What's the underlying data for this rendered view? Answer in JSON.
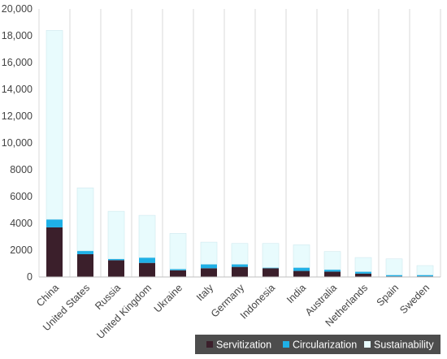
{
  "chart_data": {
    "type": "bar",
    "stacked": true,
    "categories": [
      "China",
      "United States",
      "Russia",
      "United Kingdom",
      "Ukraine",
      "Italy",
      "Germany",
      "Indonesia",
      "India",
      "Australia",
      "Netherlands",
      "Spain",
      "Sweden"
    ],
    "series": [
      {
        "name": "Servitization",
        "color": "#3b1f2b",
        "values": [
          3700,
          1700,
          1250,
          1050,
          500,
          650,
          750,
          650,
          450,
          400,
          250,
          50,
          50
        ]
      },
      {
        "name": "Circularization",
        "color": "#1fb0e6",
        "values": [
          600,
          250,
          100,
          400,
          100,
          300,
          200,
          50,
          250,
          150,
          150,
          100,
          100
        ]
      },
      {
        "name": "Sustainability",
        "color": "#e8fbfd",
        "values": [
          14100,
          4700,
          3550,
          3150,
          2650,
          1650,
          1550,
          1800,
          1700,
          1350,
          1050,
          1200,
          700
        ]
      }
    ],
    "ylim": [
      0,
      20000
    ],
    "yticks": [
      "0",
      "2000",
      "4000",
      "6000",
      "8000",
      "10,000",
      "12,000",
      "14,000",
      "16,000",
      "18,000",
      "20,000"
    ],
    "ytick_values": [
      0,
      2000,
      4000,
      6000,
      8000,
      10000,
      12000,
      14000,
      16000,
      18000,
      20000
    ],
    "grid": "vertical",
    "legend_position": "bottom-right"
  }
}
